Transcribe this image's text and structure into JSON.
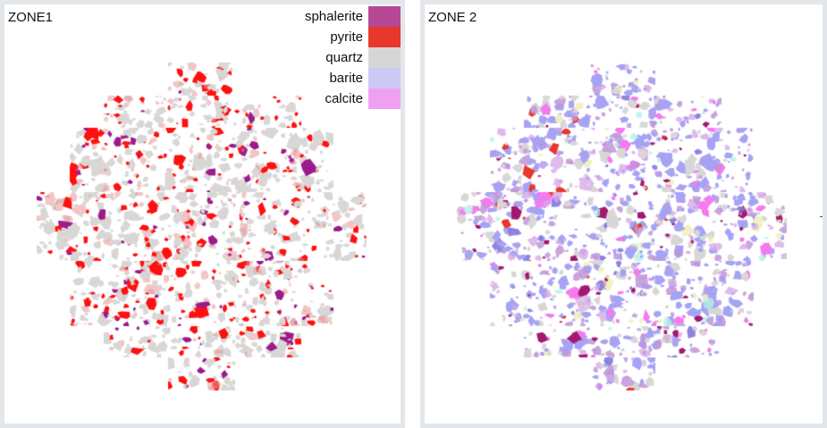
{
  "panels": [
    {
      "id": "zone1",
      "title": "ZONE1",
      "mineral_mix": {
        "quartz": 0.62,
        "pyrite": 0.22,
        "sphalerite": 0.07,
        "pyrite_speckled": 0.09
      }
    },
    {
      "id": "zone2",
      "title": "ZONE 2",
      "mineral_mix": {
        "barite": 0.38,
        "quartz": 0.2,
        "speckled_mix": 0.3,
        "calcite": 0.06,
        "sphalerite": 0.04,
        "other": 0.02
      }
    }
  ],
  "legend": {
    "items": [
      {
        "label": "sphalerite",
        "color": "#b54795"
      },
      {
        "label": "pyrite",
        "color": "#e8372b"
      },
      {
        "label": "quartz",
        "color": "#d6d6d6"
      },
      {
        "label": "barite",
        "color": "#cccaf5"
      },
      {
        "label": "calcite",
        "color": "#f0a0f2"
      }
    ]
  },
  "render_colors": {
    "pyrite": "#ff1010",
    "sphalerite": "#9c1a8c",
    "quartz": "#d9d6d6",
    "barite": "#a6a3f5",
    "calcite": "#f57af0",
    "border": "#e3e6ea"
  }
}
